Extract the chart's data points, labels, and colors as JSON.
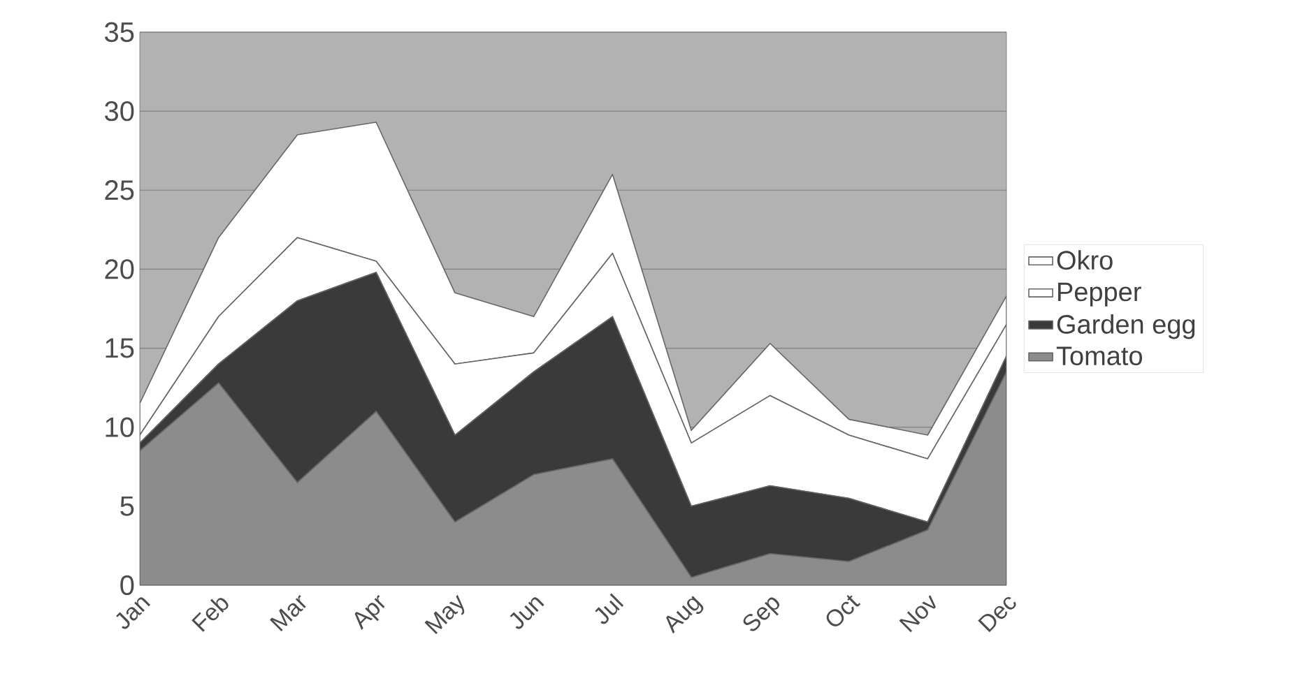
{
  "chart_data": {
    "type": "area",
    "stacked": true,
    "categories": [
      "Jan",
      "Feb",
      "Mar",
      "Apr",
      "May",
      "Jun",
      "Jul",
      "Aug",
      "Sep",
      "Oct",
      "Nov",
      "Dec"
    ],
    "series": [
      {
        "name": "Tomato",
        "color": "#8c8c8c",
        "values": [
          8.5,
          12.8,
          6.5,
          11,
          4,
          7,
          8,
          0.5,
          2,
          1.5,
          3.5,
          13.5
        ]
      },
      {
        "name": "Garden egg",
        "color": "#3a3a3a",
        "values": [
          0.5,
          1.2,
          11.5,
          8.8,
          5.5,
          6.5,
          9,
          4.5,
          4.3,
          4,
          0.5,
          1
        ]
      },
      {
        "name": "Pepper",
        "color": "#ffffff",
        "values": [
          0.5,
          3,
          4,
          0.7,
          4.5,
          1.2,
          4,
          4,
          5.7,
          4,
          4,
          2
        ]
      },
      {
        "name": "Okro",
        "color": "#ffffff",
        "values": [
          2,
          5,
          6.5,
          8.8,
          4.5,
          2.3,
          5,
          0.8,
          3.3,
          1,
          1.5,
          1.8
        ]
      }
    ],
    "ylim": [
      0,
      35
    ],
    "yticks": [
      0,
      5,
      10,
      15,
      20,
      25,
      30,
      35
    ],
    "grid": "y",
    "legend": "right"
  }
}
